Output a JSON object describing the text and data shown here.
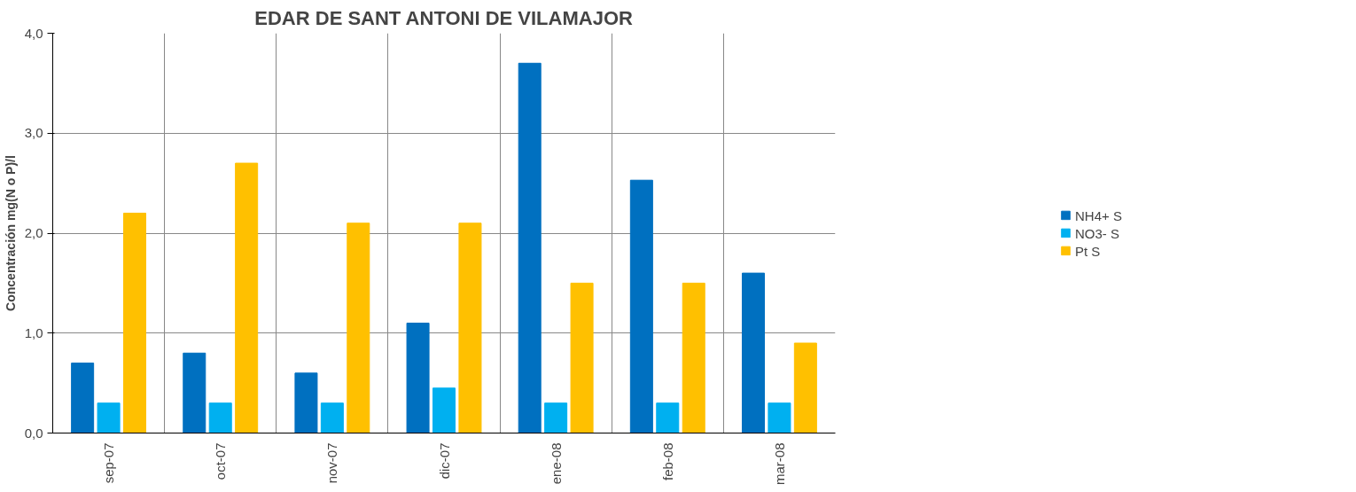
{
  "chart_data": {
    "type": "bar",
    "title": "EDAR DE SANT ANTONI DE VILAMAJOR",
    "ylabel": "Concentración mg(N o P)/l",
    "categories": [
      "sep-07",
      "oct-07",
      "nov-07",
      "dic-07",
      "ene-08",
      "feb-08",
      "mar-08"
    ],
    "series": [
      {
        "name": "NH4+ S",
        "color": "#0070c0",
        "values": [
          0.7,
          0.8,
          0.6,
          1.1,
          3.7,
          2.53,
          1.6
        ]
      },
      {
        "name": "NO3- S",
        "color": "#00b0f0",
        "values": [
          0.3,
          0.3,
          0.3,
          0.45,
          0.3,
          0.3,
          0.3
        ]
      },
      {
        "name": "Pt S",
        "color": "#ffc000",
        "values": [
          2.2,
          2.7,
          2.1,
          2.1,
          1.5,
          1.5,
          0.9
        ]
      }
    ],
    "ylim": [
      0,
      4
    ],
    "yticks": [
      {
        "value": 0,
        "label": "0,0"
      },
      {
        "value": 1,
        "label": "1,0"
      },
      {
        "value": 2,
        "label": "2,0"
      },
      {
        "value": 3,
        "label": "3,0"
      },
      {
        "value": 4,
        "label": "4,0"
      }
    ],
    "grid": true,
    "legend": "right"
  }
}
